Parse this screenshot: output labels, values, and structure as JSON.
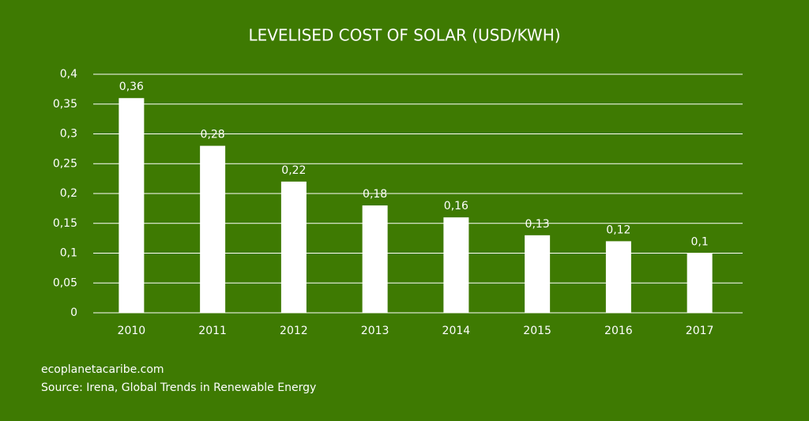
{
  "chart_data": {
    "type": "bar",
    "title": "LEVELISED COST OF SOLAR (USD/KWH)",
    "categories": [
      "2010",
      "2011",
      "2012",
      "2013",
      "2014",
      "2015",
      "2016",
      "2017"
    ],
    "values": [
      0.36,
      0.28,
      0.22,
      0.18,
      0.16,
      0.13,
      0.12,
      0.1
    ],
    "value_labels": [
      "0,36",
      "0,28",
      "0,22",
      "0,18",
      "0,16",
      "0,13",
      "0,12",
      "0,1"
    ],
    "color": "#ffffff",
    "ylim": [
      0,
      0.4
    ],
    "yticks": [
      0,
      {
        "value": 0.05,
        "label": "0,05"
      },
      {
        "value": 0.1,
        "label": "0,1"
      },
      {
        "value": 0.15,
        "label": "0,15"
      },
      {
        "value": 0.2,
        "label": "0,2"
      },
      {
        "value": 0.25,
        "label": "0,25"
      },
      {
        "value": 0.3,
        "label": "0,3"
      },
      {
        "value": 0.35,
        "label": "0,35"
      },
      {
        "value": 0.4,
        "label": "0,4"
      }
    ],
    "grid": true,
    "footer": [
      "ecoplanetacaribe.com",
      "Source: Irena, Global Trends in Renewable Energy"
    ]
  }
}
